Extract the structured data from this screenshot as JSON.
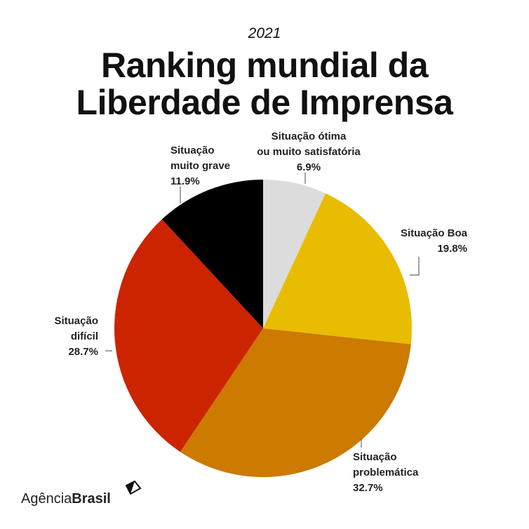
{
  "chart_data": {
    "type": "pie",
    "subtitle": "2021",
    "title_lines": [
      "Ranking mundial da",
      "Liberdade de Imprensa"
    ],
    "slices": [
      {
        "label": [
          "Situação ótima",
          "ou muito satisfatória"
        ],
        "value": 6.9,
        "value_label": "6.9%",
        "color": "#dcdcdc"
      },
      {
        "label": [
          "Situação Boa"
        ],
        "value": 19.8,
        "value_label": "19.8%",
        "color": "#e8bc00"
      },
      {
        "label": [
          "Situação",
          "problemática"
        ],
        "value": 32.7,
        "value_label": "32.7%",
        "color": "#cc7a00"
      },
      {
        "label": [
          "Situação",
          "difícil"
        ],
        "value": 28.7,
        "value_label": "28.7%",
        "color": "#cc2400"
      },
      {
        "label": [
          "Situação",
          "muito grave"
        ],
        "value": 11.9,
        "value_label": "11.9%",
        "color": "#000000"
      }
    ],
    "start": "top",
    "direction": "clockwise"
  },
  "logo": {
    "regular": "Agência",
    "bold": "Brasil"
  }
}
